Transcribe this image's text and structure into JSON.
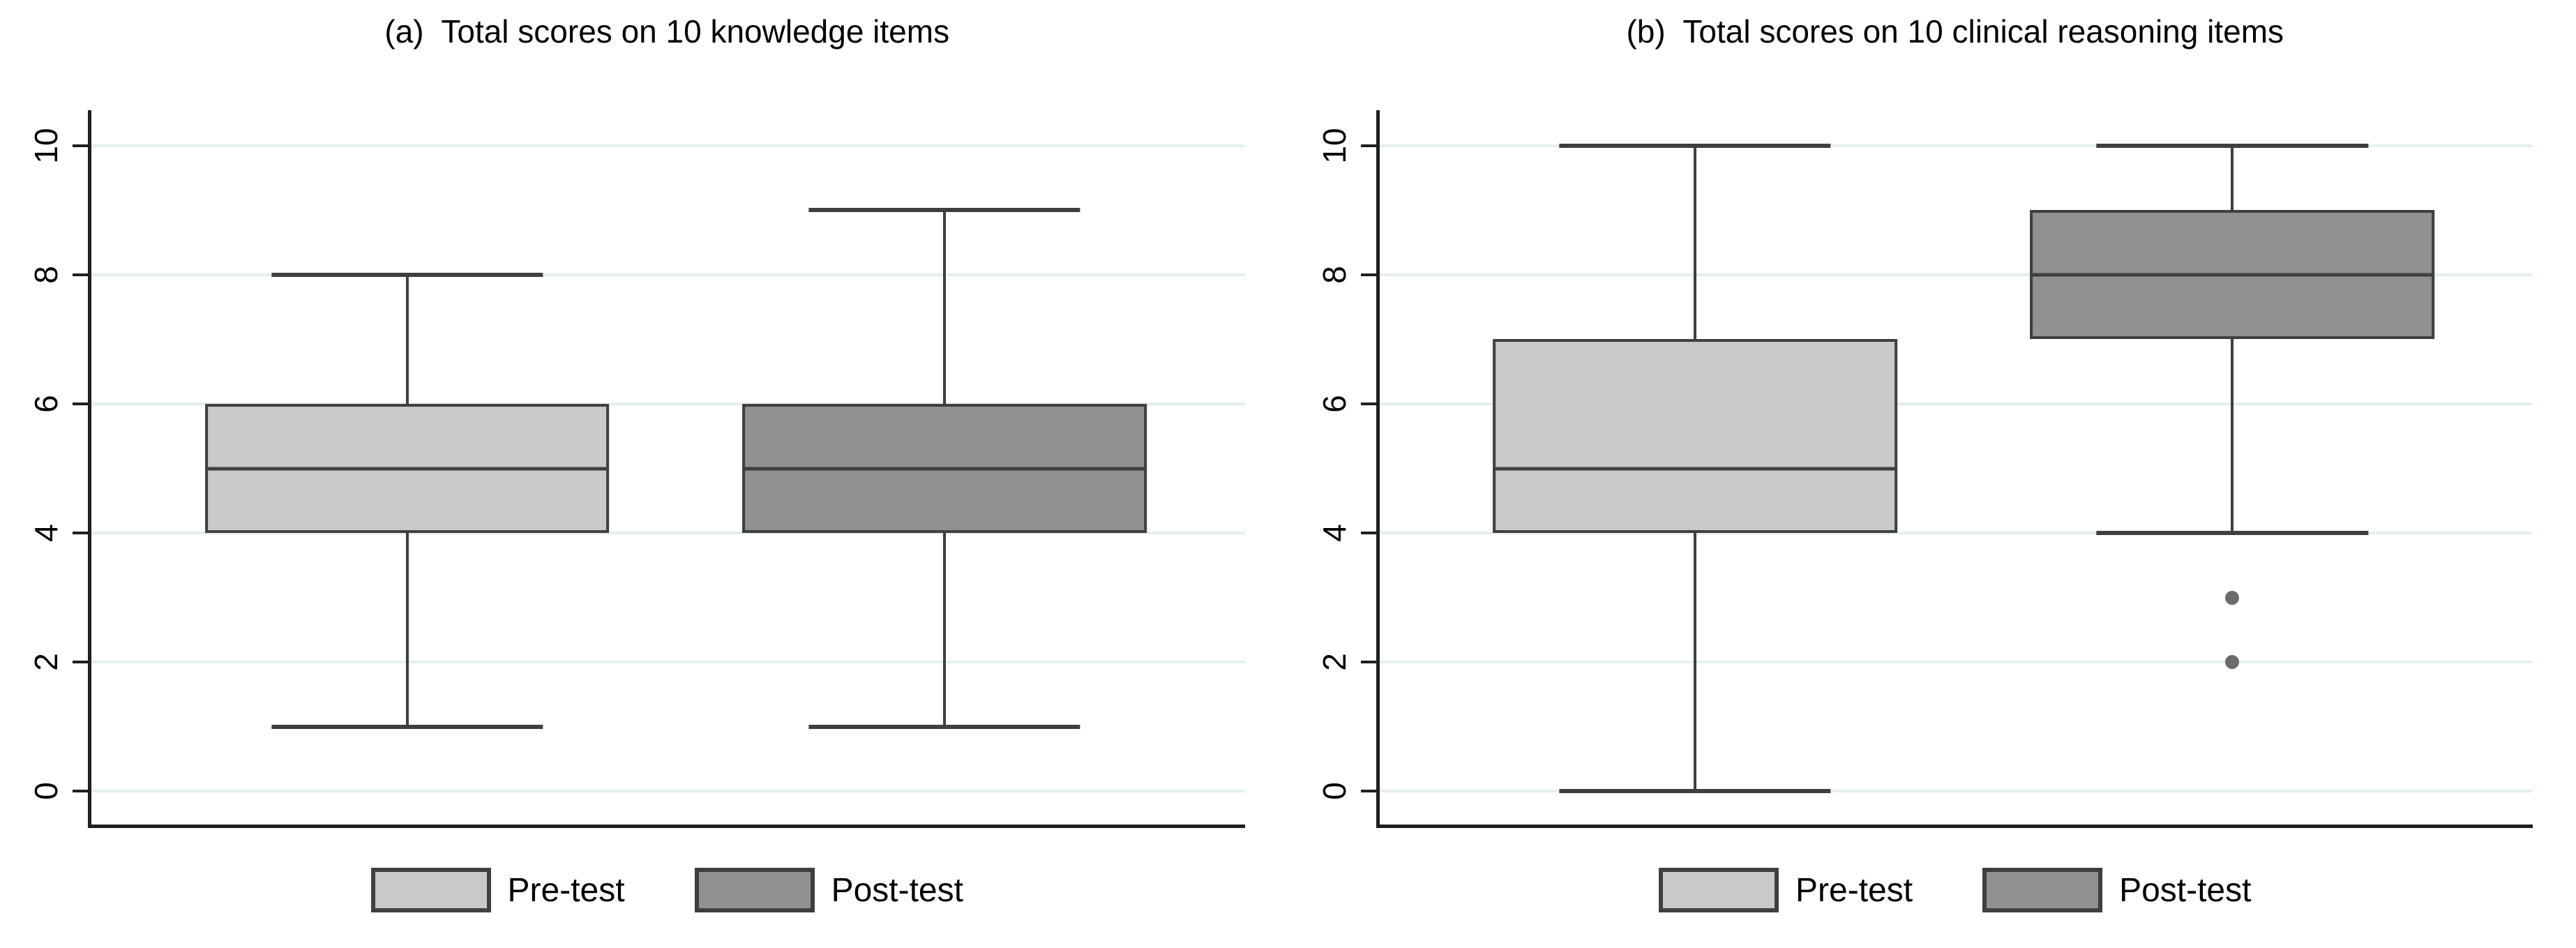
{
  "figure": {
    "background": "#ffffff",
    "colors": {
      "pretest_fill": "#c9c9c9",
      "posttest_fill": "#919191",
      "box_border": "#3f3f3f",
      "axis_line": "#1f1f1f",
      "gridline": "#e4eff1",
      "outlier_dot": "#6b6b6b",
      "text": "#000000"
    }
  },
  "legend": {
    "pretest_label": "Pre-test",
    "posttest_label": "Post-test"
  },
  "chart_data": [
    {
      "type": "boxplot",
      "panel": "a",
      "title": "(a)  Total scores on 10 knowledge items",
      "xlabel": "",
      "ylabel": "",
      "ylim": [
        0,
        10
      ],
      "yticks": [
        0,
        2,
        4,
        6,
        8,
        10
      ],
      "grid": true,
      "legend_position": "bottom",
      "series": [
        {
          "name": "Pre-test",
          "fill": "#c9c9c9",
          "whisker_low": 1,
          "q1": 4,
          "median": 5,
          "q3": 6,
          "whisker_high": 8,
          "outliers": []
        },
        {
          "name": "Post-test",
          "fill": "#919191",
          "whisker_low": 1,
          "q1": 4,
          "median": 5,
          "q3": 6,
          "whisker_high": 9,
          "outliers": []
        }
      ]
    },
    {
      "type": "boxplot",
      "panel": "b",
      "title": "(b)  Total scores on 10 clinical reasoning items",
      "xlabel": "",
      "ylabel": "",
      "ylim": [
        0,
        10
      ],
      "yticks": [
        0,
        2,
        4,
        6,
        8,
        10
      ],
      "grid": true,
      "legend_position": "bottom",
      "series": [
        {
          "name": "Pre-test",
          "fill": "#c9c9c9",
          "whisker_low": 0,
          "q1": 4,
          "median": 5,
          "q3": 7,
          "whisker_high": 10,
          "outliers": []
        },
        {
          "name": "Post-test",
          "fill": "#919191",
          "whisker_low": 4,
          "q1": 7,
          "median": 8,
          "q3": 9,
          "whisker_high": 10,
          "outliers": [
            3,
            2
          ]
        }
      ]
    }
  ]
}
